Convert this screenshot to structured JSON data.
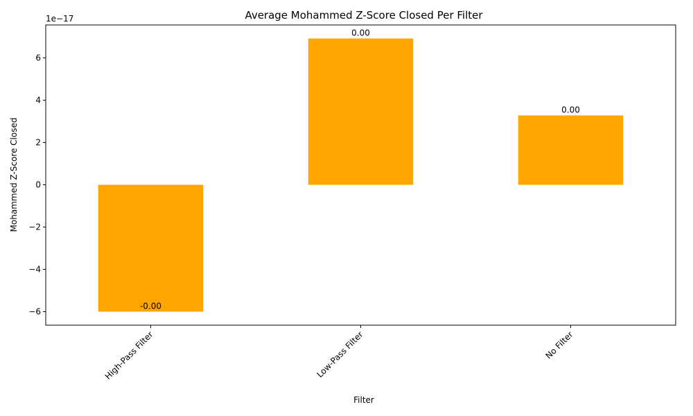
{
  "chart_data": {
    "type": "bar",
    "title": "Average Mohammed Z-Score Closed Per Filter",
    "xlabel": "Filter",
    "ylabel": "Mohammed Z-Score Closed",
    "offset_label": "1e−17",
    "categories": [
      "High-Pass Filter",
      "Low-Pass Filter",
      "No Filter"
    ],
    "values": [
      -6.0,
      6.92,
      3.28
    ],
    "value_labels": [
      "-0.00",
      "0.00",
      "0.00"
    ],
    "ylim": [
      -6.64,
      7.56
    ],
    "yticks": [
      -6,
      -4,
      -2,
      0,
      2,
      4,
      6
    ],
    "ytick_labels": [
      "−6",
      "−4",
      "−2",
      "0",
      "2",
      "4",
      "6"
    ],
    "bar_color": "#FFA500",
    "grid": false,
    "legend": "none"
  }
}
